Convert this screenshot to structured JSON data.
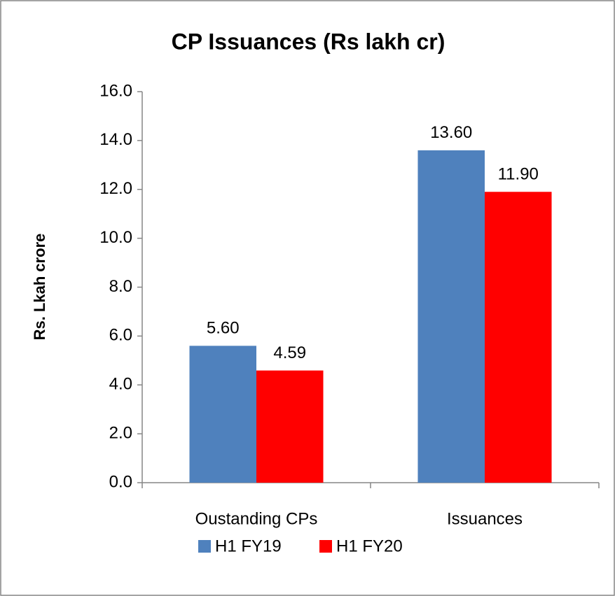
{
  "chart_data": {
    "type": "bar",
    "title": "CP Issuances (Rs lakh cr)",
    "y_label": "Rs. Lkah crore",
    "categories": [
      "Oustanding CPs",
      "Issuances"
    ],
    "series": [
      {
        "name": "H1 FY19",
        "color": "#4f81bd",
        "values": [
          5.6,
          13.6
        ],
        "value_labels": [
          "5.60",
          "13.60"
        ]
      },
      {
        "name": "H1 FY20",
        "color": "#ff0000",
        "values": [
          4.59,
          11.9
        ],
        "value_labels": [
          "4.59",
          "11.90"
        ]
      }
    ],
    "ylim": [
      0,
      16
    ],
    "yticks": [
      {
        "value": 0,
        "label": "0.0"
      },
      {
        "value": 2,
        "label": "2.0"
      },
      {
        "value": 4,
        "label": "4.0"
      },
      {
        "value": 6,
        "label": "6.0"
      },
      {
        "value": 8,
        "label": "8.0"
      },
      {
        "value": 10,
        "label": "10.0"
      },
      {
        "value": 12,
        "label": "12.0"
      },
      {
        "value": 14,
        "label": "14.0"
      },
      {
        "value": 16,
        "label": "16.0"
      }
    ],
    "legend": "bottom"
  }
}
